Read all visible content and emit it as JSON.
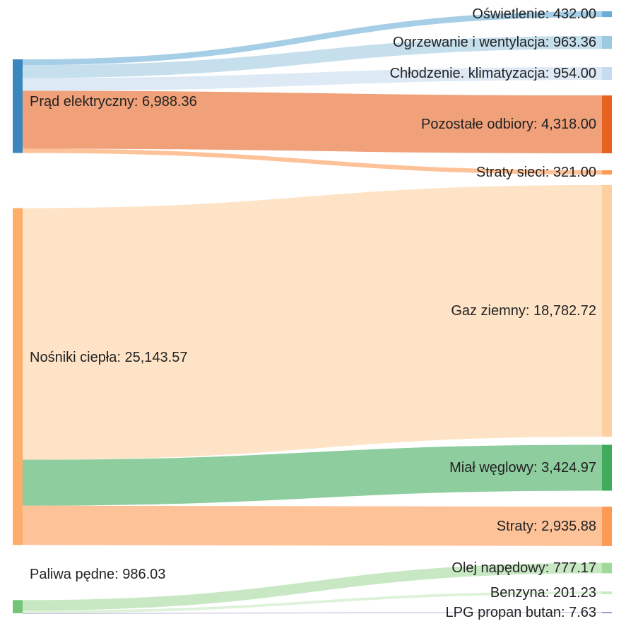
{
  "chart_data": {
    "type": "sankey",
    "title": "",
    "colors": {
      "blue_dark": "#3a87c0",
      "blue_mid": "#6aaed6",
      "blue_light": "#9ecae1",
      "blue_pale": "#c6dbef",
      "orange_dark": "#e6621f",
      "orange_mid": "#fd9a55",
      "orange_light": "#fdae6b",
      "orange_pale": "#fdd0a2",
      "green_dark": "#41ab5d",
      "green_mid": "#74c476",
      "green_light": "#a1d99b",
      "green_pale": "#c7e9c0",
      "purple": "#9e9ac8"
    },
    "sources": [
      {
        "id": "prad",
        "label": "Prąd elektryczny: 6,988.36",
        "value": 6988.36,
        "color": "blue_dark"
      },
      {
        "id": "nosniki",
        "label": "Nośniki ciepła: 25,143.57",
        "value": 25143.57,
        "color": "orange_light"
      },
      {
        "id": "paliwa",
        "label": "Paliwa pędne: 986.03",
        "value": 986.03,
        "color": "green_mid"
      }
    ],
    "targets": [
      {
        "id": "oswietlenie",
        "label": "Oświetlenie: 432.00",
        "value": 432.0,
        "color": "blue_mid"
      },
      {
        "id": "ogrzewanie",
        "label": "Ogrzewanie i wentylacja: 963.36",
        "value": 963.36,
        "color": "blue_light"
      },
      {
        "id": "chlodzenie",
        "label": "Chłodzenie. klimatyzacja: 954.00",
        "value": 954.0,
        "color": "blue_pale"
      },
      {
        "id": "pozostale",
        "label": "Pozostałe odbiory: 4,318.00",
        "value": 4318.0,
        "color": "orange_dark"
      },
      {
        "id": "straty_sieci",
        "label": "Straty sieci: 321.00",
        "value": 321.0,
        "color": "orange_mid"
      },
      {
        "id": "gaz",
        "label": "Gaz ziemny: 18,782.72",
        "value": 18782.72,
        "color": "orange_pale"
      },
      {
        "id": "mial",
        "label": "Miał węglowy: 3,424.97",
        "value": 3424.97,
        "color": "green_dark"
      },
      {
        "id": "straty",
        "label": "Straty: 2,935.88",
        "value": 2935.88,
        "color": "orange_mid"
      },
      {
        "id": "olej",
        "label": "Olej napędowy: 777.17",
        "value": 777.17,
        "color": "green_light"
      },
      {
        "id": "benzyna",
        "label": "Benzyna: 201.23",
        "value": 201.23,
        "color": "green_pale"
      },
      {
        "id": "lpg",
        "label": "LPG propan butan: 7.63",
        "value": 7.63,
        "color": "purple"
      }
    ],
    "flows": [
      {
        "from": "prad",
        "to": "oswietlenie",
        "value": 432.0
      },
      {
        "from": "prad",
        "to": "ogrzewanie",
        "value": 963.36
      },
      {
        "from": "prad",
        "to": "chlodzenie",
        "value": 954.0
      },
      {
        "from": "prad",
        "to": "pozostale",
        "value": 4318.0
      },
      {
        "from": "prad",
        "to": "straty_sieci",
        "value": 321.0
      },
      {
        "from": "nosniki",
        "to": "gaz",
        "value": 18782.72
      },
      {
        "from": "nosniki",
        "to": "mial",
        "value": 3424.97
      },
      {
        "from": "nosniki",
        "to": "straty",
        "value": 2935.88
      },
      {
        "from": "paliwa",
        "to": "olej",
        "value": 777.17
      },
      {
        "from": "paliwa",
        "to": "benzyna",
        "value": 201.23
      },
      {
        "from": "paliwa",
        "to": "lpg",
        "value": 7.63
      }
    ]
  }
}
